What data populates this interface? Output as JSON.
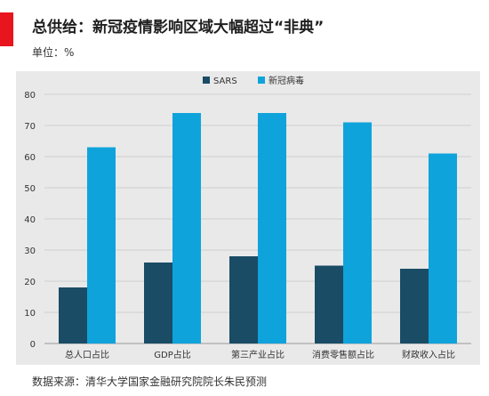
{
  "header": {
    "title": "总供给：新冠疫情影响区域大幅超过“非典”",
    "unit": "单位：%"
  },
  "footer": {
    "source": "数据来源：清华大学国家金融研究院院长朱民预测"
  },
  "colors": {
    "accent": "#e8141e",
    "panel_bg": "#e9e9e9",
    "sars": "#1a4c66",
    "covid": "#0fa3dc"
  },
  "chart_data": {
    "type": "bar",
    "categories": [
      "总人口占比",
      "GDP占比",
      "第三产业占比",
      "消费零售额占比",
      "财政收入占比"
    ],
    "series": [
      {
        "name": "SARS",
        "values": [
          18,
          26,
          28,
          25,
          24
        ]
      },
      {
        "name": "新冠病毒",
        "values": [
          63,
          74,
          74,
          71,
          61
        ]
      }
    ],
    "ylim": [
      0,
      80
    ],
    "yticks": [
      0,
      10,
      20,
      30,
      40,
      50,
      60,
      70,
      80
    ],
    "grid": true,
    "legend": "top-center"
  }
}
